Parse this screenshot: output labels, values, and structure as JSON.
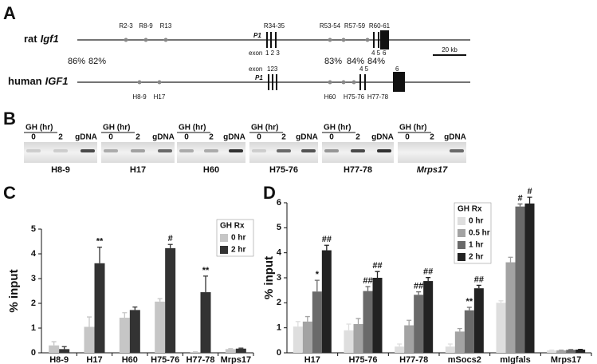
{
  "panel_a": {
    "letter": "A",
    "rat": {
      "species": "rat",
      "gene": "Igf1",
      "regions": [
        "R2-3",
        "R8-9",
        "R13",
        "R34-35",
        "R53-54",
        "R57-59",
        "R60-61"
      ],
      "promoter": "P1",
      "exon_word": "exon",
      "exons": [
        "1 2 3",
        "4 5",
        "6"
      ]
    },
    "human": {
      "species": "human",
      "gene": "IGF1",
      "regions": [
        "H8-9",
        "H17",
        "H60",
        "H75-76",
        "H77-78"
      ],
      "promoter": "P1",
      "exon_word": "exon",
      "exons": [
        "123",
        "4 5",
        "6"
      ]
    },
    "identity": [
      "86%",
      "82%",
      "83%",
      "84%",
      "84%"
    ],
    "scale": "20 kb"
  },
  "panel_b": {
    "letter": "B",
    "header": "GH (hr)",
    "lanes": [
      "0",
      "2",
      "gDNA"
    ],
    "gels": [
      "H8-9",
      "H17",
      "H60",
      "H75-76",
      "H77-78",
      "Mrps17"
    ]
  },
  "chart_data": [
    {
      "type": "bar",
      "letter": "C",
      "ylabel": "% input",
      "categories": [
        "H8-9",
        "H17",
        "H60",
        "H75-76",
        "H77-78",
        "Mrps17"
      ],
      "legend_title": "GH Rx",
      "series": [
        {
          "name": "0 hr",
          "color": "#c6c6c6",
          "values": [
            0.3,
            1.05,
            1.42,
            2.07,
            0.03,
            0.15
          ],
          "errors": [
            0.15,
            0.4,
            0.2,
            0.12,
            0.01,
            0.02
          ],
          "significance": [
            null,
            null,
            null,
            null,
            null,
            null
          ]
        },
        {
          "name": "2 hr",
          "color": "#333333",
          "values": [
            0.15,
            3.62,
            1.73,
            4.23,
            2.45,
            0.17
          ],
          "errors": [
            0.1,
            0.65,
            0.12,
            0.15,
            0.65,
            0.02
          ],
          "significance": [
            null,
            "**",
            null,
            "#",
            "**",
            null
          ]
        }
      ],
      "ylim": [
        0,
        5
      ],
      "yticks": [
        0,
        1,
        2,
        3,
        4,
        5
      ]
    },
    {
      "type": "bar",
      "letter": "D",
      "ylabel": "% input",
      "categories": [
        "H17",
        "H75-76",
        "H77-78",
        "mSocs2",
        "mIgfals",
        "Mrps17"
      ],
      "legend_title": "GH Rx",
      "series": [
        {
          "name": "0 hr",
          "color": "#dedede",
          "values": [
            1.05,
            0.9,
            0.25,
            0.25,
            2.0,
            0.1
          ],
          "errors": [
            0.2,
            0.25,
            0.1,
            0.1,
            0.08,
            0.01
          ],
          "significance": [
            null,
            null,
            null,
            null,
            null,
            null
          ]
        },
        {
          "name": "0.5 hr",
          "color": "#a3a3a3",
          "values": [
            1.25,
            1.15,
            1.1,
            0.85,
            3.62,
            0.1
          ],
          "errors": [
            0.2,
            0.22,
            0.2,
            0.12,
            0.2,
            0.01
          ],
          "significance": [
            null,
            null,
            null,
            null,
            null,
            null
          ]
        },
        {
          "name": "1 hr",
          "color": "#6a6a6a",
          "values": [
            2.45,
            2.47,
            2.32,
            1.7,
            5.85,
            0.12
          ],
          "errors": [
            0.45,
            0.18,
            0.12,
            0.12,
            0.1,
            0.01
          ],
          "significance": [
            "*",
            "##",
            "##",
            "**",
            "#",
            null
          ]
        },
        {
          "name": "2 hr",
          "color": "#222222",
          "values": [
            4.1,
            3.0,
            2.87,
            2.58,
            5.97,
            0.13
          ],
          "errors": [
            0.2,
            0.25,
            0.14,
            0.12,
            0.25,
            0.01
          ],
          "significance": [
            "##",
            "##",
            "##",
            "##",
            "#",
            null
          ]
        }
      ],
      "ylim": [
        0,
        6
      ],
      "yticks": [
        0,
        1,
        2,
        3,
        4,
        5,
        6
      ]
    }
  ]
}
